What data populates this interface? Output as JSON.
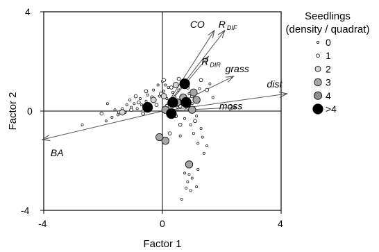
{
  "chart_data": {
    "type": "scatter",
    "title": "",
    "xlabel": "Factor 1",
    "ylabel": "Factor 2",
    "xlim": [
      -4,
      4
    ],
    "ylim": [
      -4,
      4
    ],
    "xticks": [
      "-4",
      "0",
      "4"
    ],
    "yticks": [
      "-4",
      "0",
      "4"
    ],
    "grid": false,
    "zero_lines": true,
    "legend": {
      "title_line1": "Seedlings",
      "title_line2": "(density / quadrat)",
      "position": "right",
      "entries": [
        {
          "label": "0",
          "level": 0
        },
        {
          "label": "1",
          "level": 1
        },
        {
          "label": "2",
          "level": 2
        },
        {
          "label": "3",
          "level": 3
        },
        {
          "label": "4",
          "level": 4
        },
        {
          "label": ">4",
          "level": 5
        }
      ]
    },
    "level_styles": [
      {
        "level": 0,
        "size": 1.6,
        "fill": "#ffffff"
      },
      {
        "level": 1,
        "size": 2.4,
        "fill": "#ffffff"
      },
      {
        "level": 2,
        "size": 4.0,
        "fill": "#d6d6d6"
      },
      {
        "level": 3,
        "size": 5.2,
        "fill": "#a6a6a6"
      },
      {
        "level": 4,
        "size": 5.6,
        "fill": "#8c8c8c"
      },
      {
        "level": 5,
        "size": 7.2,
        "fill": "#000000"
      }
    ],
    "vectors": [
      {
        "name": "CO",
        "x": 1.75,
        "y": 3.25
      },
      {
        "name": "R",
        "subscript": "DIF",
        "x": 2.1,
        "y": 3.25
      },
      {
        "name": "R",
        "subscript": "DIR",
        "x": 1.55,
        "y": 2.2
      },
      {
        "name": "grass",
        "x": 2.4,
        "y": 1.4
      },
      {
        "name": "dist",
        "x": 4.2,
        "y": 0.7
      },
      {
        "name": "moss",
        "x": 2.5,
        "y": 0.15
      },
      {
        "name": "BA",
        "x": -4.05,
        "y": -1.15
      }
    ],
    "points": [
      {
        "x": -2.7,
        "y": -0.55,
        "level": 0
      },
      {
        "x": -1.85,
        "y": 0.3,
        "level": 0
      },
      {
        "x": -1.9,
        "y": -0.4,
        "level": 0
      },
      {
        "x": -1.7,
        "y": -0.25,
        "level": 0
      },
      {
        "x": -1.6,
        "y": 0.05,
        "level": 0
      },
      {
        "x": -1.5,
        "y": -0.15,
        "level": 0
      },
      {
        "x": -1.35,
        "y": 0.1,
        "level": 0
      },
      {
        "x": -1.25,
        "y": -0.05,
        "level": 0
      },
      {
        "x": -1.2,
        "y": 0.25,
        "level": 0
      },
      {
        "x": -1.1,
        "y": 0.45,
        "level": 0
      },
      {
        "x": -1.05,
        "y": 0.15,
        "level": 0
      },
      {
        "x": -0.95,
        "y": 0.3,
        "level": 0
      },
      {
        "x": -0.85,
        "y": 0.1,
        "level": 0
      },
      {
        "x": -0.75,
        "y": 0.5,
        "level": 0
      },
      {
        "x": -0.7,
        "y": 0.25,
        "level": 0
      },
      {
        "x": -0.65,
        "y": 0.0,
        "level": 0
      },
      {
        "x": -0.55,
        "y": 0.4,
        "level": 0
      },
      {
        "x": -0.5,
        "y": 0.65,
        "level": 0
      },
      {
        "x": -0.4,
        "y": 0.2,
        "level": 0
      },
      {
        "x": -0.3,
        "y": 0.85,
        "level": 0
      },
      {
        "x": -0.25,
        "y": 0.45,
        "level": 0
      },
      {
        "x": -0.15,
        "y": 1.05,
        "level": 0
      },
      {
        "x": -0.1,
        "y": 0.6,
        "level": 0
      },
      {
        "x": 0.0,
        "y": 1.2,
        "level": 0
      },
      {
        "x": 0.05,
        "y": 0.8,
        "level": 0
      },
      {
        "x": 0.1,
        "y": 1.05,
        "level": 0
      },
      {
        "x": 0.15,
        "y": 0.5,
        "level": 0
      },
      {
        "x": 0.2,
        "y": 0.95,
        "level": 0
      },
      {
        "x": 0.25,
        "y": 0.3,
        "level": 0
      },
      {
        "x": 0.35,
        "y": 0.75,
        "level": 0
      },
      {
        "x": 0.45,
        "y": 0.45,
        "level": 0
      },
      {
        "x": 0.5,
        "y": 0.15,
        "level": 0
      },
      {
        "x": 0.55,
        "y": 0.85,
        "level": 0
      },
      {
        "x": 0.65,
        "y": 0.6,
        "level": 0
      },
      {
        "x": 0.7,
        "y": 0.35,
        "level": 0
      },
      {
        "x": 0.75,
        "y": -0.3,
        "level": 0
      },
      {
        "x": 0.8,
        "y": 0.05,
        "level": 0
      },
      {
        "x": 0.9,
        "y": 0.7,
        "level": 0
      },
      {
        "x": 0.95,
        "y": -0.55,
        "level": 0
      },
      {
        "x": 1.0,
        "y": 0.3,
        "level": 0
      },
      {
        "x": 1.05,
        "y": -0.9,
        "level": 0
      },
      {
        "x": 1.1,
        "y": 0.5,
        "level": 0
      },
      {
        "x": 1.15,
        "y": -0.2,
        "level": 0
      },
      {
        "x": 1.2,
        "y": -1.3,
        "level": 0
      },
      {
        "x": 1.25,
        "y": 0.9,
        "level": 0
      },
      {
        "x": 1.3,
        "y": -0.7,
        "level": 0
      },
      {
        "x": 1.35,
        "y": -1.05,
        "level": 0
      },
      {
        "x": 1.4,
        "y": -1.7,
        "level": 0
      },
      {
        "x": 1.5,
        "y": -1.4,
        "level": 0
      },
      {
        "x": 1.6,
        "y": 1.1,
        "level": 0
      },
      {
        "x": 1.7,
        "y": 0.55,
        "level": 0
      },
      {
        "x": 0.75,
        "y": -2.5,
        "level": 0
      },
      {
        "x": 0.85,
        "y": -2.85,
        "level": 0
      },
      {
        "x": 0.9,
        "y": -2.55,
        "level": 0
      },
      {
        "x": 1.0,
        "y": -2.7,
        "level": 0
      },
      {
        "x": 0.8,
        "y": -3.1,
        "level": 0
      },
      {
        "x": 0.95,
        "y": -3.2,
        "level": 0
      },
      {
        "x": 1.15,
        "y": -3.05,
        "level": 0
      },
      {
        "x": 0.65,
        "y": -3.55,
        "level": 0
      },
      {
        "x": 0.6,
        "y": -1.0,
        "level": 0
      },
      {
        "x": 1.2,
        "y": -2.35,
        "level": 0
      },
      {
        "x": -2.05,
        "y": -0.1,
        "level": 1
      },
      {
        "x": -1.45,
        "y": -0.05,
        "level": 1
      },
      {
        "x": -1.05,
        "y": 0.05,
        "level": 1
      },
      {
        "x": -0.8,
        "y": 0.35,
        "level": 1
      },
      {
        "x": -0.65,
        "y": -0.1,
        "level": 1
      },
      {
        "x": -0.55,
        "y": 0.8,
        "level": 1
      },
      {
        "x": -0.35,
        "y": 0.55,
        "level": 1
      },
      {
        "x": -0.2,
        "y": 0.25,
        "level": 1
      },
      {
        "x": -0.05,
        "y": 0.7,
        "level": 1
      },
      {
        "x": 0.05,
        "y": 1.25,
        "level": 1
      },
      {
        "x": 0.15,
        "y": 0.2,
        "level": 1
      },
      {
        "x": 0.3,
        "y": 0.95,
        "level": 1
      },
      {
        "x": 0.4,
        "y": 0.55,
        "level": 1
      },
      {
        "x": 0.55,
        "y": 1.3,
        "level": 1
      },
      {
        "x": 0.6,
        "y": 0.2,
        "level": 1
      },
      {
        "x": 0.85,
        "y": 0.95,
        "level": 1
      },
      {
        "x": 1.0,
        "y": 0.6,
        "level": 1
      },
      {
        "x": 1.05,
        "y": 0.1,
        "level": 1
      },
      {
        "x": 0.6,
        "y": -0.55,
        "level": 1
      },
      {
        "x": 0.45,
        "y": -0.2,
        "level": 1
      },
      {
        "x": 1.1,
        "y": -0.4,
        "level": 1
      },
      {
        "x": 1.3,
        "y": 1.25,
        "level": 1
      },
      {
        "x": -0.9,
        "y": 0.6,
        "level": 1
      },
      {
        "x": 1.5,
        "y": 0.85,
        "level": 1
      },
      {
        "x": 0.25,
        "y": -0.9,
        "level": 1
      },
      {
        "x": -1.35,
        "y": -0.05,
        "level": 2
      },
      {
        "x": 0.05,
        "y": 0.6,
        "level": 2
      },
      {
        "x": 0.45,
        "y": 1.05,
        "level": 2
      },
      {
        "x": 0.85,
        "y": 0.25,
        "level": 2
      },
      {
        "x": -0.3,
        "y": 0.45,
        "level": 2
      },
      {
        "x": 0.5,
        "y": 0.35,
        "level": 3
      },
      {
        "x": 0.7,
        "y": 0.55,
        "level": 3
      },
      {
        "x": 1.05,
        "y": 0.75,
        "level": 3
      },
      {
        "x": 1.15,
        "y": 0.45,
        "level": 3
      },
      {
        "x": 1.0,
        "y": 0.05,
        "level": 3
      },
      {
        "x": 0.1,
        "y": 0.05,
        "level": 3
      },
      {
        "x": 0.1,
        "y": -1.2,
        "level": 3
      },
      {
        "x": -0.1,
        "y": -1.05,
        "level": 3
      },
      {
        "x": 0.9,
        "y": -2.15,
        "level": 3
      },
      {
        "x": -0.5,
        "y": 0.15,
        "level": 5
      },
      {
        "x": 0.35,
        "y": 0.35,
        "level": 5
      },
      {
        "x": 0.75,
        "y": 1.1,
        "level": 5
      },
      {
        "x": 0.8,
        "y": 0.35,
        "level": 5
      },
      {
        "x": 0.3,
        "y": -0.1,
        "level": 5
      }
    ]
  }
}
